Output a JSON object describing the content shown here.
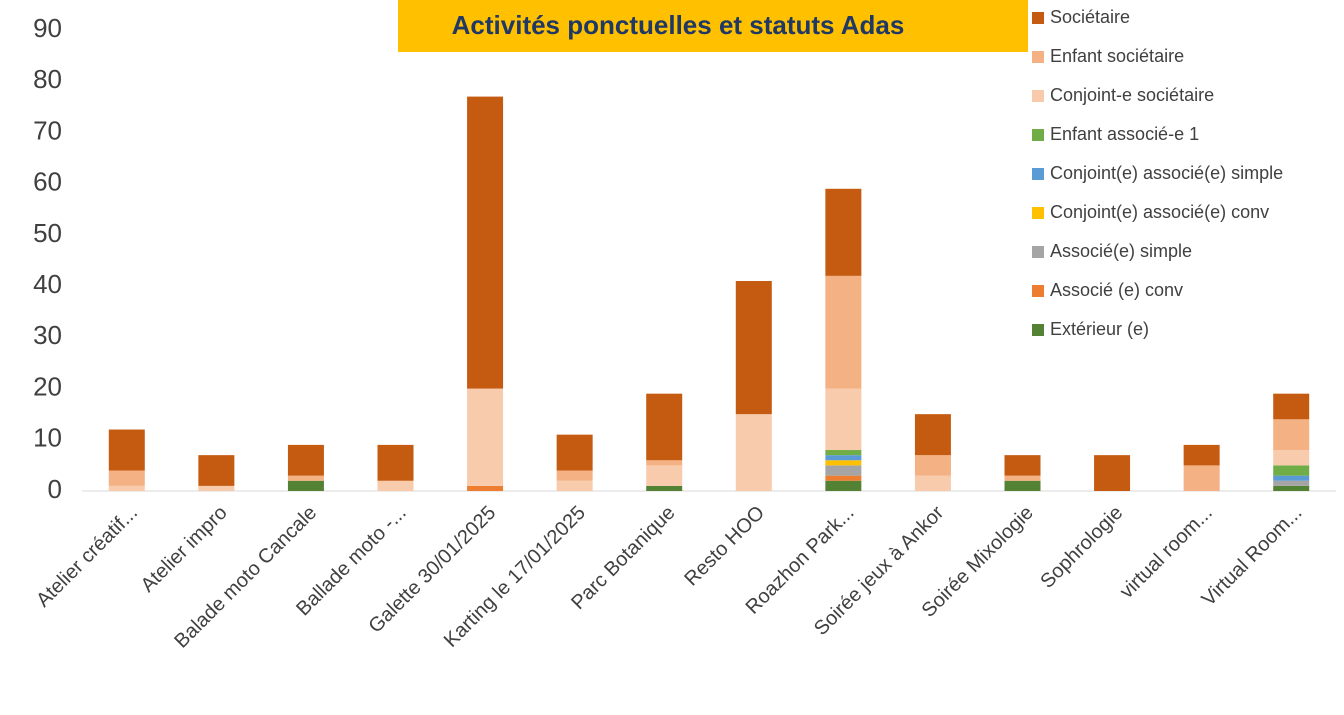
{
  "chart_data": {
    "type": "bar",
    "stacked": true,
    "title": "Activités ponctuelles et statuts Adas",
    "categories": [
      "Atelier créatif...",
      "Atelier impro",
      "Balade moto Cancale",
      "Ballade moto -...",
      "Galette 30/01/2025",
      "Karting le 17/01/2025",
      "Parc Botanique",
      "Resto HOO",
      "Roazhon Park...",
      "Soirée jeux à Ankor",
      "Soirée Mixologie",
      "Sophrologie",
      "virtual room...",
      "Virtual Room..."
    ],
    "series": [
      {
        "name": "Extérieur (e)",
        "color": "#548235",
        "values": [
          0,
          0,
          2,
          0,
          0,
          0,
          1,
          0,
          2,
          0,
          2,
          0,
          0,
          1
        ]
      },
      {
        "name": "Associé (e) conv",
        "color": "#ed7d31",
        "values": [
          0,
          0,
          0,
          0,
          1,
          0,
          0,
          0,
          1,
          0,
          0,
          0,
          0,
          0
        ]
      },
      {
        "name": "Associé(e) simple",
        "color": "#a5a5a5",
        "values": [
          0,
          0,
          0,
          0,
          0,
          0,
          0,
          0,
          2,
          0,
          0,
          0,
          0,
          1
        ]
      },
      {
        "name": "Conjoint(e) associé(e) conv",
        "color": "#ffc000",
        "values": [
          0,
          0,
          0,
          0,
          0,
          0,
          0,
          0,
          1,
          0,
          0,
          0,
          0,
          0
        ]
      },
      {
        "name": "Conjoint(e) associé(e) simple",
        "color": "#5b9bd5",
        "values": [
          0,
          0,
          0,
          0,
          0,
          0,
          0,
          0,
          1,
          0,
          0,
          0,
          0,
          1
        ]
      },
      {
        "name": "Enfant associé-e 1",
        "color": "#70ad47",
        "values": [
          0,
          0,
          0,
          0,
          0,
          0,
          0,
          0,
          1,
          0,
          0,
          0,
          0,
          2
        ]
      },
      {
        "name": "Conjoint-e sociétaire",
        "color": "#f8cbad",
        "values": [
          1,
          1,
          0,
          2,
          19,
          2,
          4,
          15,
          12,
          3,
          0,
          0,
          0,
          3
        ]
      },
      {
        "name": "Enfant sociétaire",
        "color": "#f4b183",
        "values": [
          3,
          0,
          1,
          0,
          0,
          2,
          1,
          0,
          22,
          4,
          1,
          0,
          5,
          6
        ]
      },
      {
        "name": "Sociétaire",
        "color": "#c55a11",
        "values": [
          8,
          6,
          6,
          7,
          57,
          7,
          13,
          26,
          17,
          8,
          4,
          7,
          4,
          5
        ]
      }
    ],
    "ylim": [
      0,
      90
    ],
    "yticks": [
      0,
      10,
      20,
      30,
      40,
      50,
      60,
      70,
      80,
      90
    ],
    "grid": false,
    "legend": "right"
  }
}
